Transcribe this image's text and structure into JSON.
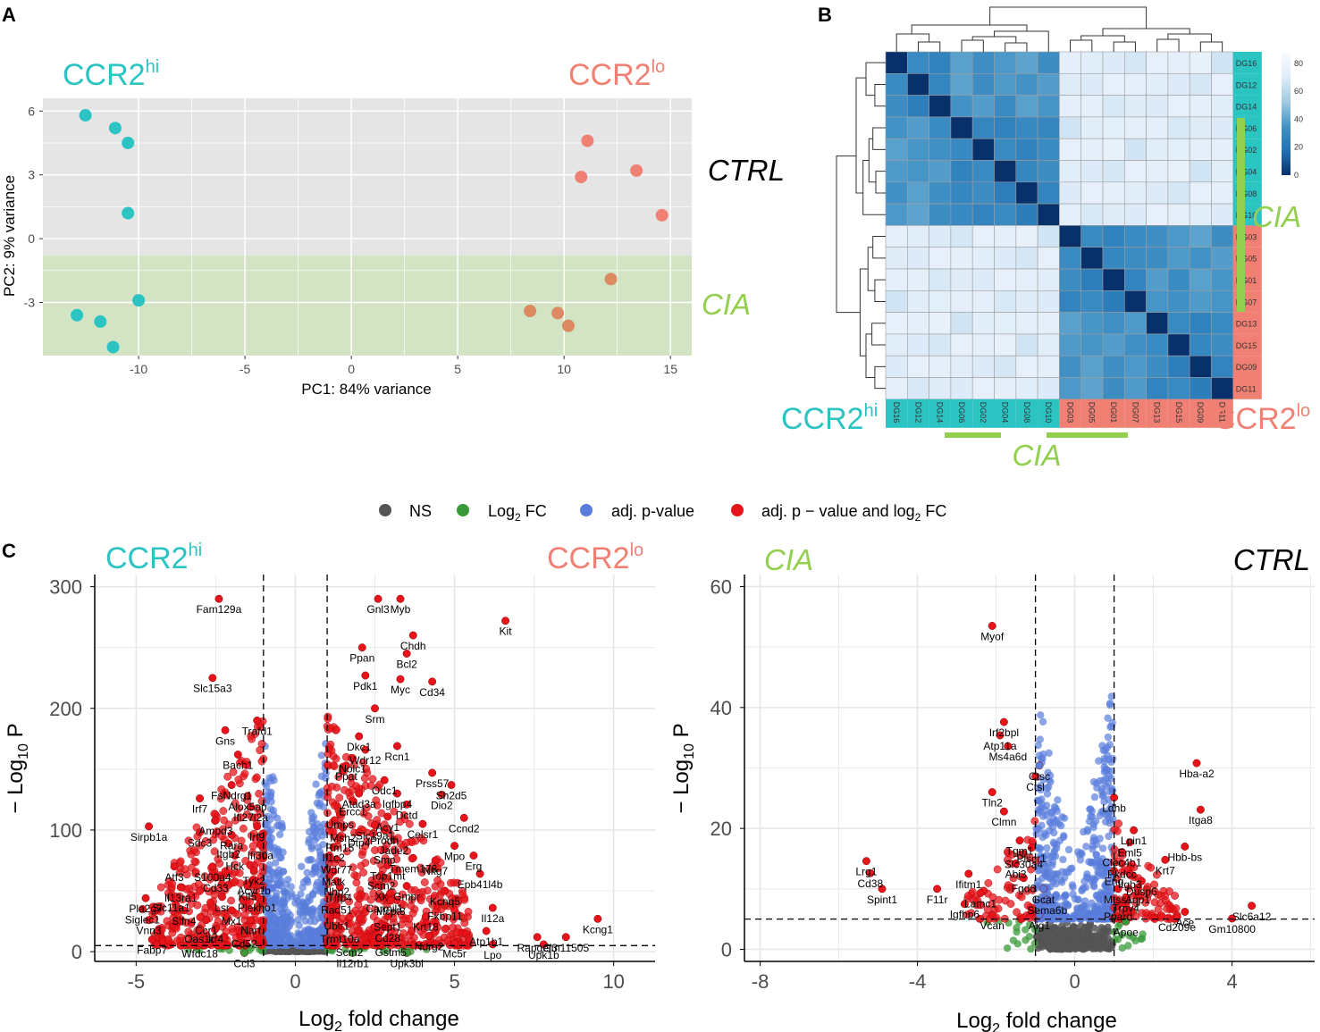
{
  "colors": {
    "teal": "#2cc3c3",
    "salmon": "#f08073",
    "lime": "#93cf4f",
    "panel_grey": "#e5e5e5",
    "cia_band": "#d2e4c3",
    "ns_grey": "#555555",
    "fc_green": "#3a9a3a",
    "p_blue": "#5a7ddc",
    "both_red": "#e8141b"
  },
  "panel_letters": [
    "A",
    "B",
    "C"
  ],
  "groups": {
    "ccr2_hi": {
      "base": "CCR2",
      "sup": "hi"
    },
    "ccr2_lo": {
      "base": "CCR2",
      "sup": "lo"
    },
    "ctrl": "CTRL",
    "cia": "CIA"
  },
  "chart_data": [
    {
      "id": "pca",
      "type": "scatter",
      "title": "",
      "xlabel": "PC1: 84% variance",
      "ylabel": "PC2: 9% variance",
      "xlim": [
        -14.5,
        16
      ],
      "ylim": [
        -5.5,
        6.6
      ],
      "xticks": [
        -10,
        -5,
        0,
        5,
        10,
        15
      ],
      "yticks": [
        -3,
        0,
        3,
        6
      ],
      "cia_band_ylim": [
        -5.5,
        -0.8
      ],
      "series": [
        {
          "name": "CCR2hi",
          "color": "teal",
          "points": [
            [
              -12.5,
              5.8
            ],
            [
              -11.1,
              5.2
            ],
            [
              -10.5,
              4.5
            ],
            [
              -10.5,
              1.2
            ],
            [
              -10.0,
              -2.9
            ],
            [
              -12.9,
              -3.6
            ],
            [
              -11.8,
              -3.9
            ],
            [
              -11.2,
              -5.1
            ]
          ]
        },
        {
          "name": "CCR2lo CTRL",
          "color": "salmon",
          "points": [
            [
              11.1,
              4.6
            ],
            [
              10.8,
              2.9
            ],
            [
              13.4,
              3.2
            ],
            [
              14.6,
              1.1
            ]
          ]
        },
        {
          "name": "CCR2lo CIA",
          "color": "#dc8a62",
          "points": [
            [
              12.2,
              -1.9
            ],
            [
              8.4,
              -3.4
            ],
            [
              9.7,
              -3.5
            ],
            [
              10.2,
              -4.1
            ]
          ]
        }
      ]
    },
    {
      "id": "heatmap",
      "type": "heatmap",
      "samples": [
        "DG16",
        "DG12",
        "DG14",
        "DG06",
        "DG02",
        "DG04",
        "DG08",
        "DG10",
        "DG03",
        "DG05",
        "DG01",
        "DG07",
        "DG13",
        "DG15",
        "DG09",
        "DG11"
      ],
      "sample_group": [
        "hi",
        "hi",
        "hi",
        "hi",
        "hi",
        "hi",
        "hi",
        "hi",
        "lo",
        "lo",
        "lo",
        "lo",
        "lo",
        "lo",
        "lo",
        "lo"
      ],
      "legend_ticks": [
        0,
        20,
        40,
        60,
        80
      ],
      "distance_within_cluster": 35,
      "distance_between_clusters": 82
    },
    {
      "id": "volcano_left",
      "type": "scatter",
      "xlabel_base": "Log",
      "xlabel_sub": "2",
      "xlabel_rest": " fold change",
      "ylabel_minus": "− Log",
      "ylabel_sub": "10",
      "ylabel_rest": " P",
      "xlim": [
        -6.3,
        11.3
      ],
      "ylim": [
        -8,
        310
      ],
      "xticks": [
        -5,
        0,
        5,
        10
      ],
      "yticks": [
        0,
        100,
        200,
        300
      ],
      "fc_cutoffs": [
        -1,
        1
      ],
      "p_cutoff": 5,
      "labels": [
        [
          "Fam129a",
          -2.4,
          290
        ],
        [
          "Slc15a3",
          -2.6,
          225
        ],
        [
          "Trafd1",
          -1.2,
          190
        ],
        [
          "Gns",
          -2.2,
          182
        ],
        [
          "Bach1",
          -1.8,
          162
        ],
        [
          "FsNdrg1",
          -2.0,
          137
        ],
        [
          "Alox5ap",
          -1.5,
          128
        ],
        [
          "Irf7",
          -3.0,
          126
        ],
        [
          "Ifi27l2a",
          -1.4,
          119
        ],
        [
          "Ampd3",
          -2.5,
          108
        ],
        [
          "Irf9",
          -1.2,
          103
        ],
        [
          "Sdc3",
          -3.0,
          98
        ],
        [
          "Rara",
          -2.0,
          96
        ],
        [
          "Itgb2",
          -2.1,
          89
        ],
        [
          "Ifi30a",
          -1.1,
          88
        ],
        [
          "Hck",
          -1.9,
          79
        ],
        [
          "Sirpb1a",
          -4.6,
          103
        ],
        [
          "Atf3",
          -3.8,
          70
        ],
        [
          "S100a4",
          -2.6,
          70
        ],
        [
          "Tyk2",
          -1.3,
          67
        ],
        [
          "Cd33",
          -2.5,
          61
        ],
        [
          "Acyr1b",
          -1.3,
          59
        ],
        [
          "Il13ra1",
          -3.6,
          53
        ],
        [
          "Kif5",
          -1.5,
          54
        ],
        [
          "Lsr",
          -2.3,
          45
        ],
        [
          "Plekho1",
          -1.2,
          45
        ],
        [
          "Pla2g7",
          -4.7,
          44
        ],
        [
          "Slc11a1",
          -3.9,
          45
        ],
        [
          "Siglec1",
          -4.8,
          35
        ],
        [
          "Mx1",
          -2.0,
          34
        ],
        [
          "Slfn4",
          -3.5,
          34
        ],
        [
          "Narf",
          -1.4,
          26
        ],
        [
          "Vnn3",
          -4.6,
          26
        ],
        [
          "Ccr1",
          -2.8,
          26
        ],
        [
          "Cd52",
          -1.6,
          15
        ],
        [
          "Oas1c",
          -3.0,
          19
        ],
        [
          "Irf4",
          -2.5,
          19
        ],
        [
          "Fabp7",
          -4.5,
          10
        ],
        [
          "Wfdc18",
          -3.0,
          7
        ],
        [
          "Ccl3",
          -1.6,
          -1
        ],
        [
          "Gnl3",
          2.6,
          290
        ],
        [
          "Myb",
          3.3,
          290
        ],
        [
          "Kit",
          6.6,
          272
        ],
        [
          "Chdh",
          3.7,
          260
        ],
        [
          "Ppan",
          2.1,
          250
        ],
        [
          "Bcl2",
          3.5,
          245
        ],
        [
          "Pdk1",
          2.2,
          227
        ],
        [
          "Myc",
          3.3,
          224
        ],
        [
          "Cd34",
          4.3,
          222
        ],
        [
          "Srm",
          2.5,
          200
        ],
        [
          "Dkc1",
          2.0,
          177
        ],
        [
          "Wdr12",
          2.2,
          166
        ],
        [
          "Nolc1",
          1.8,
          159
        ],
        [
          "Rcn1",
          3.2,
          169
        ],
        [
          "Ppat",
          1.6,
          153
        ],
        [
          "Prss57",
          4.3,
          147
        ],
        [
          "Odc1",
          2.8,
          141
        ],
        [
          "Sh2d5",
          4.9,
          137
        ],
        [
          "Atad3a",
          2.0,
          130
        ],
        [
          "Igfbp4",
          3.2,
          130
        ],
        [
          "Dio2",
          4.6,
          129
        ],
        [
          "Ercc1",
          1.8,
          124
        ],
        [
          "Dctd",
          3.5,
          121
        ],
        [
          "Acy1",
          2.9,
          111
        ],
        [
          "Umps",
          1.4,
          113
        ],
        [
          "Ccnd2",
          5.3,
          110
        ],
        [
          "Slc19a1",
          2.5,
          104
        ],
        [
          "Celsr1",
          4.0,
          105
        ],
        [
          "Msh2",
          1.5,
          102
        ],
        [
          "Prodh",
          2.8,
          100
        ],
        [
          "Dtp4",
          2.0,
          98
        ],
        [
          "Rm15",
          1.4,
          94
        ],
        [
          "Jade2",
          3.1,
          92
        ],
        [
          "Mpo",
          5.0,
          87
        ],
        [
          "Il1c2",
          1.2,
          86
        ],
        [
          "Smo",
          2.8,
          84
        ],
        [
          "Erg",
          5.6,
          79
        ],
        [
          "Tmem178",
          3.7,
          77
        ],
        [
          "Wdr77",
          1.3,
          76
        ],
        [
          "Nkg7",
          4.4,
          75
        ],
        [
          "Top1mt",
          2.9,
          71
        ],
        [
          "Matk",
          1.2,
          66
        ],
        [
          "Epb41l4b",
          5.8,
          64
        ],
        [
          "Scrn2",
          2.7,
          63
        ],
        [
          "Tlrp4",
          1.4,
          53
        ],
        [
          "Nhp2",
          1.3,
          58
        ],
        [
          "Xk",
          2.7,
          54
        ],
        [
          "Gmpr",
          3.5,
          54
        ],
        [
          "Kcnq5",
          4.7,
          50
        ],
        [
          "Carmil1",
          2.8,
          44
        ],
        [
          "Rad51",
          1.3,
          43
        ],
        [
          "Mcpt8",
          3.0,
          42
        ],
        [
          "Fkbp11",
          4.7,
          38
        ],
        [
          "Il12a",
          6.2,
          36
        ],
        [
          "Kcng1",
          9.5,
          27
        ],
        [
          "Sept1",
          2.9,
          29
        ],
        [
          "Krt18",
          4.1,
          29
        ],
        [
          "Ublr1",
          1.3,
          30
        ],
        [
          "Cd28",
          2.9,
          20
        ],
        [
          "Atp1b1",
          6.0,
          17
        ],
        [
          "Trmt10a",
          1.4,
          19
        ],
        [
          "Ndrg2",
          4.2,
          13
        ],
        [
          "Rapgef3",
          7.6,
          12
        ],
        [
          "Gm11505",
          8.5,
          12
        ],
        [
          "Scm2",
          1.7,
          8
        ],
        [
          "Gstm5",
          3.0,
          8
        ],
        [
          "Mc5r",
          5.0,
          7
        ],
        [
          "Lpo",
          6.2,
          6
        ],
        [
          "Upk1b",
          7.8,
          6
        ],
        [
          "Il12rb1",
          1.8,
          -1
        ],
        [
          "Upk3bl",
          3.5,
          -1
        ]
      ]
    },
    {
      "id": "volcano_right",
      "type": "scatter",
      "xlabel_base": "Log",
      "xlabel_sub": "2",
      "xlabel_rest": " fold change",
      "ylabel_minus": "− Log",
      "ylabel_sub": "10",
      "ylabel_rest": " P",
      "xlim": [
        -8.4,
        6.1
      ],
      "ylim": [
        -2,
        62
      ],
      "xticks": [
        -8,
        -4,
        0,
        4
      ],
      "yticks": [
        0,
        20,
        40,
        60
      ],
      "fc_cutoffs": [
        -1,
        1
      ],
      "p_cutoff": 5,
      "labels": [
        [
          "Myof",
          -2.1,
          53.5
        ],
        [
          "Irf2bpl",
          -1.8,
          37.6
        ],
        [
          "Atp11a",
          -1.9,
          35.4
        ],
        [
          "Ms4a6d",
          -1.7,
          33.6
        ],
        [
          "Ctsc",
          -0.9,
          30.4
        ],
        [
          "Ctsl",
          -1.0,
          28.6
        ],
        [
          "Tln2",
          -2.1,
          26.0
        ],
        [
          "Clmn",
          -1.8,
          22.8
        ],
        [
          "Tgm1",
          -1.4,
          18.0
        ],
        [
          "Plscr1",
          -1.1,
          16.8
        ],
        [
          "Slc30a4",
          -1.3,
          15.8
        ],
        [
          "Abi3",
          -1.5,
          14.2
        ],
        [
          "Lrg1",
          -5.3,
          14.6
        ],
        [
          "Cd38",
          -5.2,
          12.6
        ],
        [
          "Ifitm1",
          -2.7,
          12.5
        ],
        [
          "Fgd6",
          -1.3,
          11.8
        ],
        [
          "Spint1",
          -4.9,
          10.0
        ],
        [
          "F11r",
          -3.5,
          10.0
        ],
        [
          "Gcat",
          -0.8,
          10.0
        ],
        [
          "Lamc1",
          -2.4,
          9.3
        ],
        [
          "Sema6b",
          -0.7,
          8.2
        ],
        [
          "Igfbp6",
          -2.8,
          7.5
        ],
        [
          "Vcan",
          -2.1,
          5.7
        ],
        [
          "Aig1",
          -0.9,
          5.7
        ],
        [
          "Hba-a2",
          3.1,
          30.8
        ],
        [
          "Ldhb",
          1.0,
          25.1
        ],
        [
          "Itga8",
          3.2,
          23.1
        ],
        [
          "Lpin1",
          1.5,
          19.7
        ],
        [
          "Eml5",
          1.4,
          17.7
        ],
        [
          "Hbb-bs",
          2.8,
          17.0
        ],
        [
          "Clec4b1",
          1.2,
          16.1
        ],
        [
          "Krt7",
          2.3,
          14.8
        ],
        [
          "Pkdcc",
          1.2,
          14.2
        ],
        [
          "Eng",
          1.0,
          13.0
        ],
        [
          "Itgb3",
          1.4,
          12.5
        ],
        [
          "Dusp6",
          1.7,
          11.3
        ],
        [
          "Mtss1",
          1.1,
          10.0
        ],
        [
          "Aqp1",
          1.6,
          10.0
        ],
        [
          "Trpv4",
          1.3,
          8.6
        ],
        [
          "Ppard",
          1.1,
          7.2
        ],
        [
          "Ace",
          2.8,
          6.2
        ],
        [
          "Slc6a12",
          4.5,
          7.2
        ],
        [
          "Cd209e",
          2.6,
          5.4
        ],
        [
          "Apoe",
          1.3,
          4.6
        ],
        [
          "Gm10800",
          4.0,
          5.1
        ]
      ]
    }
  ],
  "volcano_legend": {
    "ns": "NS",
    "fc_base": "Log",
    "fc_sub": "2",
    "fc_rest": " FC",
    "p": "adj. p-value",
    "both_base": "adj. p − value and log",
    "both_sub": "2",
    "both_rest": " FC"
  }
}
